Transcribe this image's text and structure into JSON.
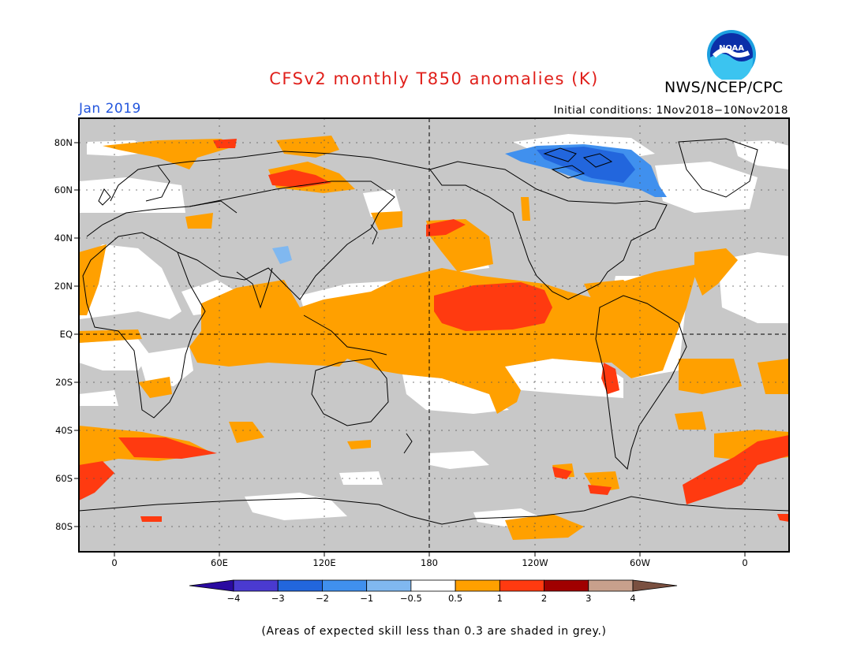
{
  "header": {
    "title": "CFSv2 monthly T850 anomalies (K)",
    "organization": "NWS/NCEP/CPC",
    "logo_text": "NOAA",
    "month": "Jan 2019",
    "initial_conditions": "Initial conditions: 1Nov2018−10Nov2018"
  },
  "map": {
    "lat_labels": [
      "80N",
      "60N",
      "40N",
      "20N",
      "EQ",
      "20S",
      "40S",
      "60S",
      "80S"
    ],
    "lon_labels": [
      "0",
      "60E",
      "120E",
      "180",
      "120W",
      "60W",
      "0"
    ]
  },
  "legend": {
    "ticks": [
      "−4",
      "−3",
      "−2",
      "−1",
      "−0.5",
      "0.5",
      "1",
      "2",
      "3",
      "4"
    ],
    "colors": [
      "#2a0aa0",
      "#4a3ad0",
      "#2266dd",
      "#4090ee",
      "#80b8f0",
      "#ffffff",
      "#ffa000",
      "#ff3a10",
      "#a00000",
      "#c8a08c",
      "#7a5040"
    ],
    "grey_color": "#c8c8c8"
  },
  "footnote": "(Areas of expected skill less than 0.3 are shaded in grey.)"
}
